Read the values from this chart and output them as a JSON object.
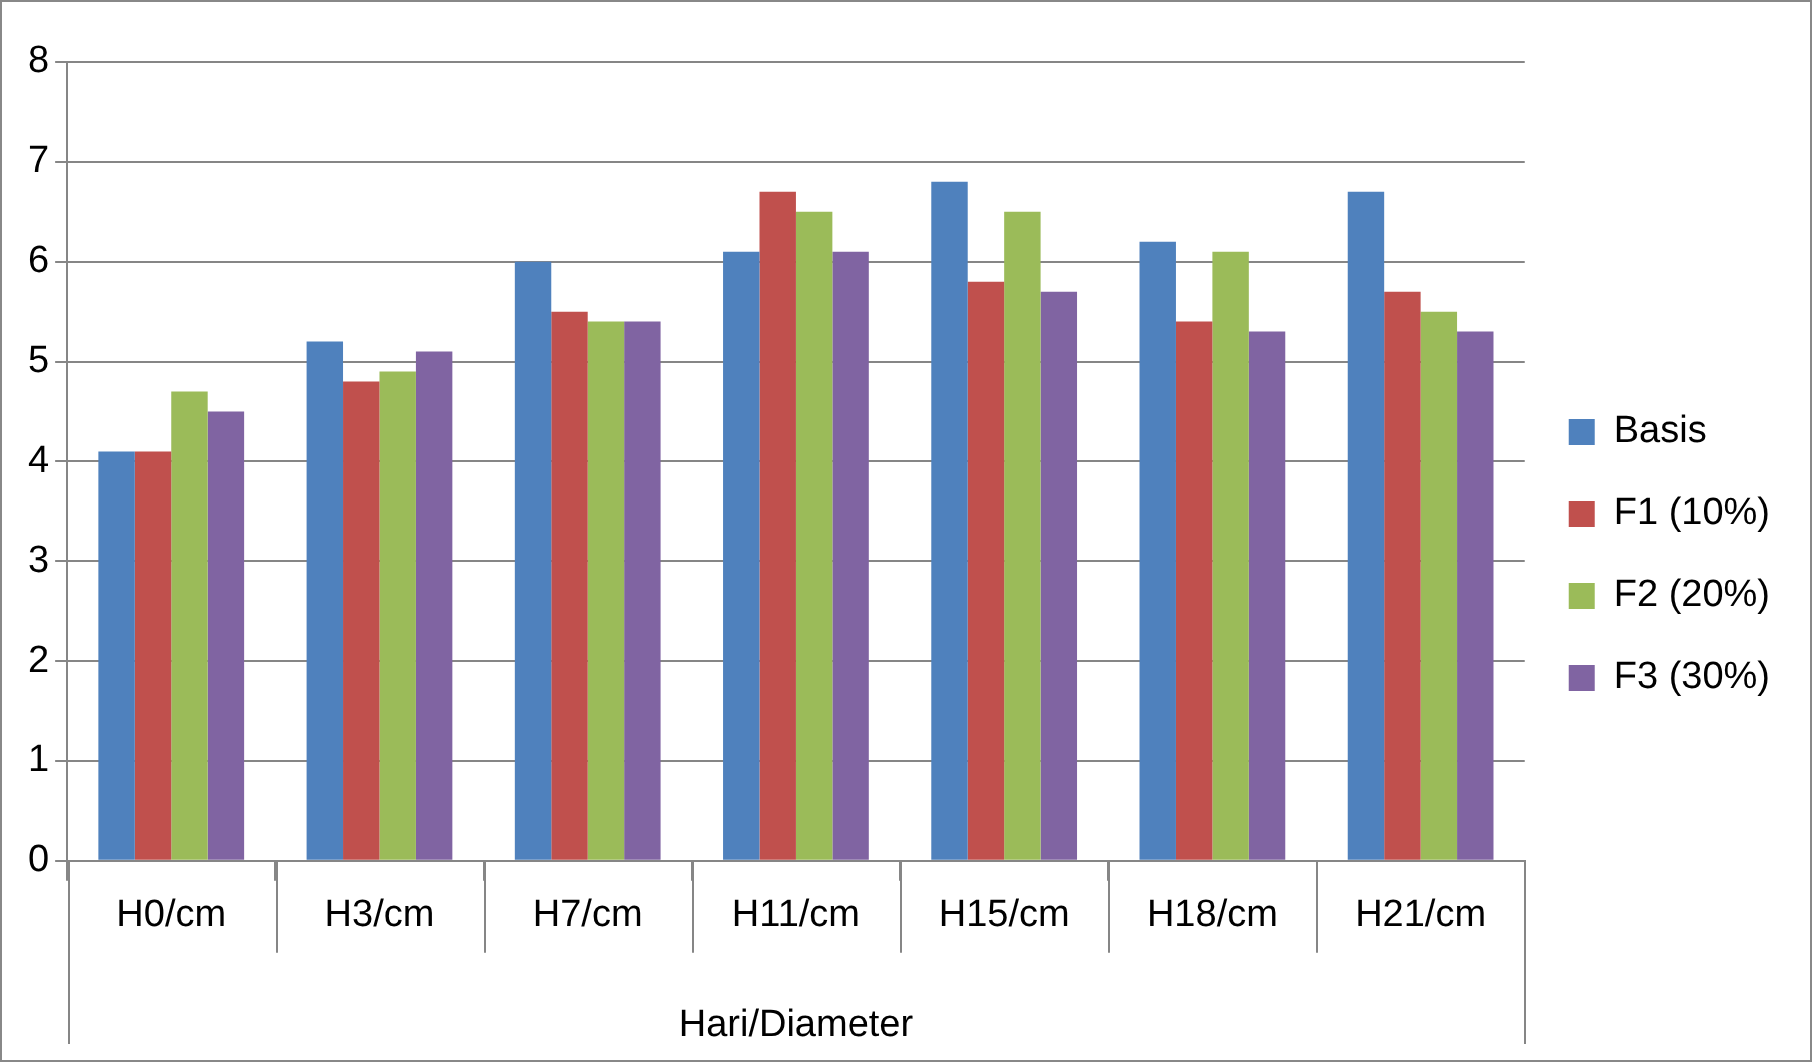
{
  "chart_data": {
    "type": "bar",
    "xlabel": "Hari/Diameter",
    "categories": [
      "H0/cm",
      "H3/cm",
      "H7/cm",
      "H11/cm",
      "H15/cm",
      "H18/cm",
      "H21/cm"
    ],
    "series": [
      {
        "name": "Basis",
        "color": "#4f81bd",
        "values": [
          4.1,
          5.2,
          6.0,
          6.1,
          6.8,
          6.2,
          6.7
        ]
      },
      {
        "name": "F1 (10%)",
        "color": "#c0504d",
        "values": [
          4.1,
          4.8,
          5.5,
          6.7,
          5.8,
          5.4,
          5.7
        ]
      },
      {
        "name": "F2 (20%)",
        "color": "#9bbb59",
        "values": [
          4.7,
          4.9,
          5.4,
          6.5,
          6.5,
          6.1,
          5.5
        ]
      },
      {
        "name": "F3 (30%)",
        "color": "#8064a2",
        "values": [
          4.5,
          5.1,
          5.4,
          6.1,
          5.7,
          5.3,
          5.3
        ]
      }
    ],
    "ylim": [
      0,
      8
    ],
    "yticks": [
      0,
      1,
      2,
      3,
      4,
      5,
      6,
      7,
      8
    ],
    "grid": "y",
    "legend": "right"
  }
}
